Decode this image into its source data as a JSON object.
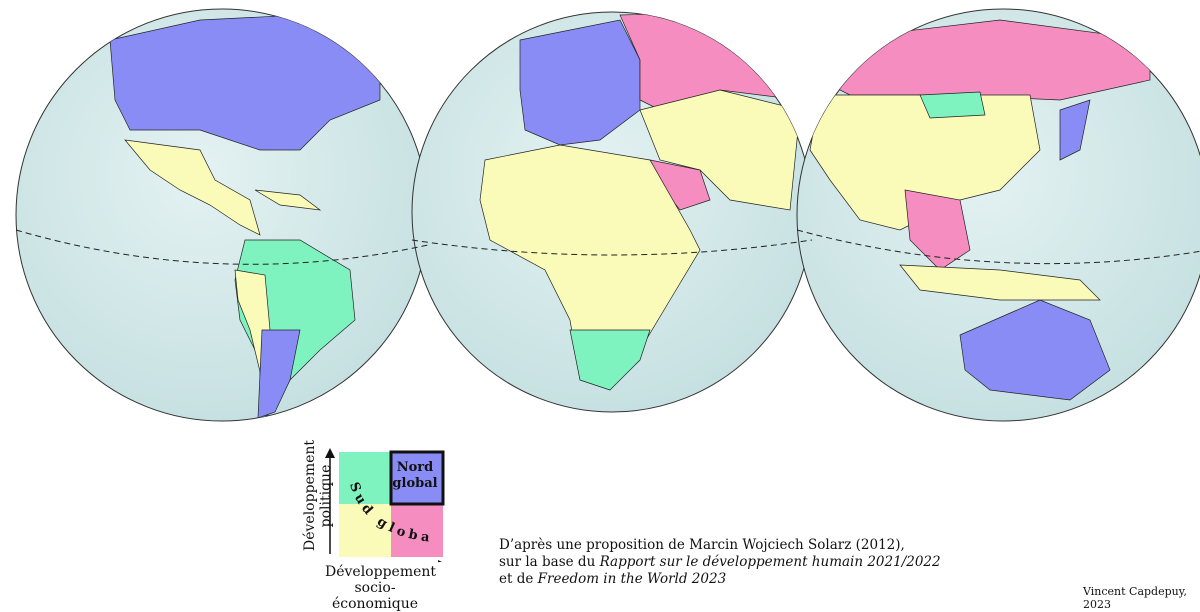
{
  "colors": {
    "ocean": "#d3e9ea",
    "nord_global": "#8a8cf5",
    "sud_green": "#7ef3c0",
    "sud_yellow": "#fafab9",
    "sud_pink": "#f58dc0"
  },
  "legend": {
    "y_axis_label": "Développement politique",
    "x_axis_label": "Développement socio-économique",
    "nord_label_line1": "Nord",
    "nord_label_line2": "global",
    "sud_label": "Sud global"
  },
  "source": {
    "line1": "D’après une proposition de Marcin Wojciech Solarz (2012),",
    "line2_prefix": "sur la base du ",
    "line2_italic": "Rapport sur le développement humain 2021/2022",
    "line3_prefix": "et de ",
    "line3_italic": "Freedom in the World 2023"
  },
  "credit": "Vincent Capdepuy, 2023"
}
